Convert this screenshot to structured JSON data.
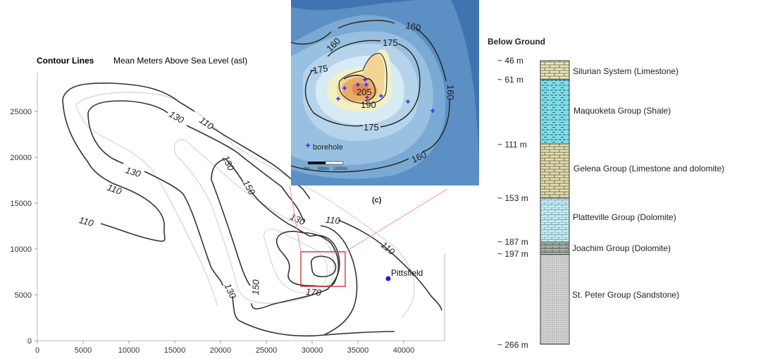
{
  "main_map": {
    "title": "Contour Lines",
    "subtitle": "Mean Meters Above Sea Level (asl)",
    "x_ticks": [
      "0",
      "5000",
      "10000",
      "15000",
      "20000",
      "25000",
      "30000",
      "35000",
      "40000"
    ],
    "y_ticks": [
      "0",
      "5000",
      "10000",
      "15000",
      "20000",
      "25000"
    ],
    "contour_labels": [
      "110",
      "130",
      "110",
      "110",
      "130",
      "110",
      "130",
      "150",
      "130",
      "150",
      "130",
      "110",
      "170"
    ],
    "town": {
      "label": "Pittsfield",
      "color": "#1a1aff"
    },
    "zoom_box_color": "#e03030"
  },
  "inset": {
    "panel_label": "(c)",
    "contour_labels": [
      "160",
      "160",
      "175",
      "175",
      "175",
      "205",
      "190",
      "160",
      "160"
    ],
    "legend_label": "borehole",
    "scale_labels": [
      "0m",
      "500m",
      "1000m"
    ],
    "borehole_color": "#2a2aff"
  },
  "column": {
    "title": "Below Ground",
    "layers": [
      {
        "top": "~ 46 m",
        "name": "Silurian System (Limestone)",
        "color": "#efe9b4"
      },
      {
        "top": "~ 61 m",
        "name": "Maquoketa Group (Shale)",
        "color": "#7fdde9"
      },
      {
        "top": "~ 111 m",
        "name": "Gelena Group (Limestone and dolomite)",
        "color": "#e6dfa8"
      },
      {
        "top": "~ 153 m",
        "name": "Platteville Group (Dolomite)",
        "color": "#c7ebf1"
      },
      {
        "top": "~ 187 m",
        "name": "Joachim Group (Dolomite)",
        "color": "#a9b8b0"
      },
      {
        "top": "~ 197 m",
        "name": "St. Peter Group (Sandstone)",
        "color": "#d8d8d8"
      }
    ],
    "bottom": "~ 266 m"
  }
}
